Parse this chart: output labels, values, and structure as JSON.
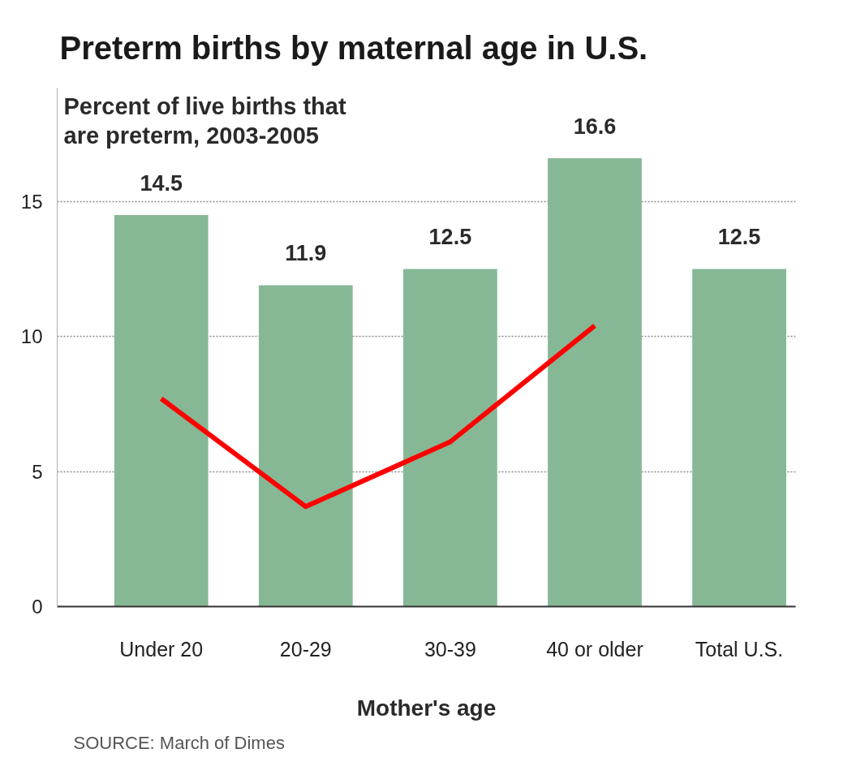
{
  "chart_data": {
    "type": "bar",
    "title": "Preterm births by maternal age in U.S.",
    "subtitle": "Percent of live births that are preterm, 2003-2005",
    "xlabel": "Mother's age",
    "annotations": [
      "SOURCE: March of Dimes"
    ],
    "categories": [
      "Under 20",
      "20-29",
      "30-39",
      "40 or older",
      "Total U.S."
    ],
    "series": [
      {
        "color": "#86b895",
        "values": [
          14.5,
          11.9,
          12.5,
          16.6,
          12.5
        ],
        "value_labels": [
          "14.5",
          "11.9",
          "12.5",
          "16.6",
          "12.5"
        ]
      },
      {
        "type": "line",
        "color": "#ff0000",
        "values": [
          7.7,
          3.7,
          6.1,
          10.4,
          null
        ]
      }
    ],
    "ylim": [
      0,
      19.2
    ],
    "yticks": [
      0,
      5,
      10,
      15
    ],
    "grid": "y"
  }
}
